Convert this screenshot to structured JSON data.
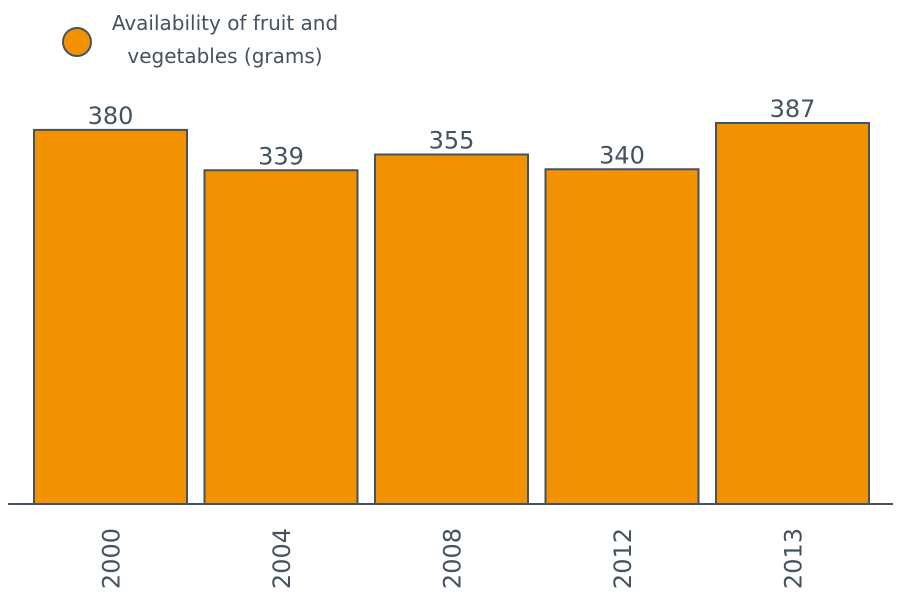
{
  "chart_data": {
    "type": "bar",
    "categories": [
      "2000",
      "2004",
      "2008",
      "2012",
      "2013"
    ],
    "series": [
      {
        "name": "Availability of fruit and vegetables (grams)",
        "values": [
          380,
          339,
          355,
          340,
          387
        ]
      }
    ],
    "legend": {
      "lines": [
        "Availability of fruit and",
        "vegetables (grams)"
      ],
      "placement": "top-left"
    },
    "ylim": [
      0,
      387
    ],
    "grid": false,
    "data_labels": true,
    "x_tick_rotation": "vertical",
    "colors": {
      "bar_fill": "#f39200",
      "bar_stroke": "#45525f",
      "text": "#45525f",
      "axis": "#45525f"
    }
  }
}
